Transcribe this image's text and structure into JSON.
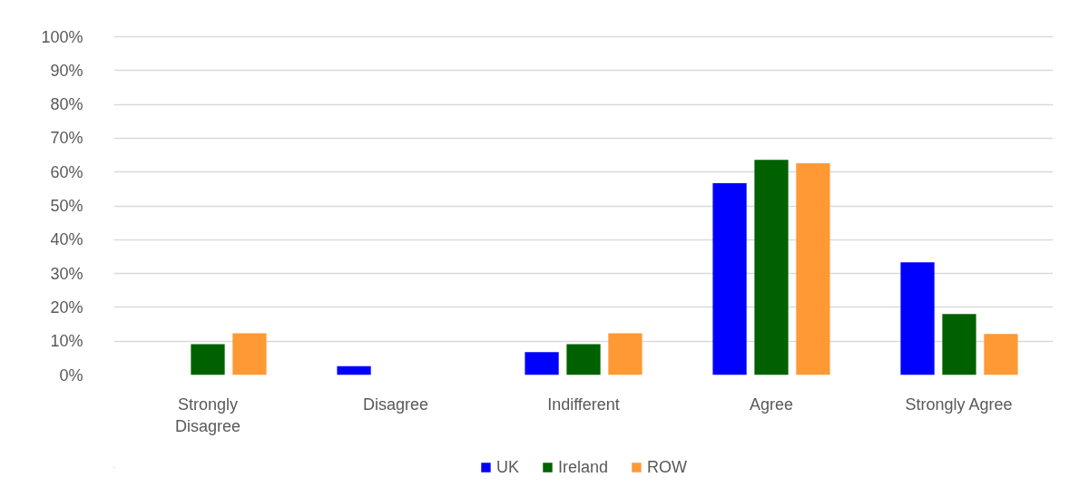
{
  "chart_data": {
    "type": "bar",
    "categories": [
      "Strongly Disagree",
      "Disagree",
      "Indifferent",
      "Agree",
      "Strongly Agree"
    ],
    "series": [
      {
        "name": "UK",
        "color": "#0000ff",
        "values": [
          0,
          2.6,
          6.8,
          56.7,
          33.3
        ]
      },
      {
        "name": "Ireland",
        "color": "#006100",
        "values": [
          9.1,
          0,
          9.1,
          63.6,
          18.0
        ]
      },
      {
        "name": "ROW",
        "color": "#ff9933",
        "values": [
          12.3,
          0,
          12.3,
          62.6,
          12.1
        ]
      }
    ],
    "ylim": [
      0,
      100
    ],
    "yticks": [
      {
        "value": 0,
        "label": "0%"
      },
      {
        "value": 10,
        "label": "10%"
      },
      {
        "value": 20,
        "label": "20%"
      },
      {
        "value": 30,
        "label": "30%"
      },
      {
        "value": 40,
        "label": "40%"
      },
      {
        "value": 50,
        "label": "50%"
      },
      {
        "value": 60,
        "label": "60%"
      },
      {
        "value": 70,
        "label": "70%"
      },
      {
        "value": 80,
        "label": "80%"
      },
      {
        "value": 90,
        "label": "90%"
      },
      {
        "value": 100,
        "label": "100%"
      }
    ],
    "grid": "y",
    "legend": "bottom"
  }
}
